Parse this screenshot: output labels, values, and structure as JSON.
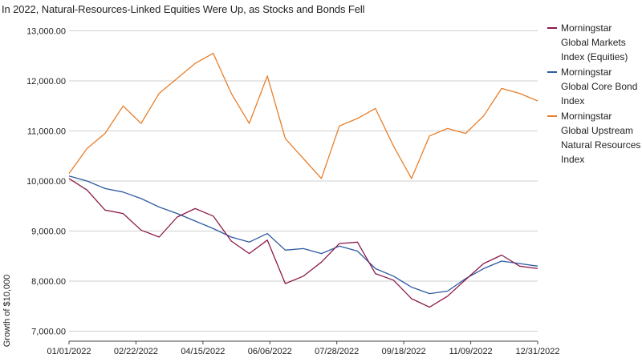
{
  "chart_data": {
    "type": "line",
    "title": "In 2022, Natural-Resources-Linked Equities Were Up, as Stocks and Bonds Fell",
    "ylabel": "Growth of $10,000",
    "xlabel": "",
    "ylim": [
      6800,
      13200
    ],
    "y_ticks": [
      7000,
      8000,
      9000,
      10000,
      11000,
      12000,
      13000
    ],
    "y_tick_labels": [
      "7,000.00",
      "8,000.00",
      "9,000.00",
      "10,000.00",
      "11,000.00",
      "12,000.00",
      "13,000.00"
    ],
    "x_tick_labels": [
      "01/01/2022",
      "02/22/2022",
      "04/15/2022",
      "06/06/2022",
      "07/28/2022",
      "09/18/2022",
      "11/09/2022",
      "12/31/2022"
    ],
    "grid": "horizontal",
    "legend_position": "right",
    "x": [
      "01/01",
      "01/14",
      "01/28",
      "02/11",
      "02/25",
      "03/11",
      "03/25",
      "04/08",
      "04/22",
      "05/06",
      "05/20",
      "06/03",
      "06/17",
      "07/01",
      "07/15",
      "07/29",
      "08/12",
      "08/26",
      "09/09",
      "09/23",
      "10/07",
      "10/21",
      "11/04",
      "11/18",
      "12/02",
      "12/16",
      "12/31"
    ],
    "series": [
      {
        "name": "Morningstar Global Markets Index (Equities)",
        "color": "#8b1a4a",
        "values": [
          10050,
          9820,
          9420,
          9350,
          9020,
          8880,
          9280,
          9450,
          9300,
          8800,
          8550,
          8820,
          7950,
          8100,
          8380,
          8750,
          8780,
          8150,
          8020,
          7650,
          7480,
          7700,
          8030,
          8350,
          8520,
          8300,
          8250
        ]
      },
      {
        "name": "Morningstar Global Core Bond Index",
        "color": "#2d5aa0",
        "values": [
          10100,
          10000,
          9850,
          9780,
          9650,
          9480,
          9350,
          9200,
          9050,
          8880,
          8780,
          8950,
          8620,
          8650,
          8550,
          8700,
          8600,
          8250,
          8100,
          7880,
          7750,
          7800,
          8050,
          8250,
          8400,
          8350,
          8300
        ]
      },
      {
        "name": "Morningstar Global Upstream Natural Resources Index",
        "color": "#e87e2a",
        "values": [
          10150,
          10650,
          10950,
          11500,
          11150,
          11750,
          12050,
          12350,
          12550,
          11750,
          11150,
          12100,
          10850,
          10450,
          10050,
          11100,
          11250,
          11450,
          10700,
          10050,
          10900,
          11050,
          10950,
          11300,
          11850,
          11750,
          11600
        ]
      }
    ]
  }
}
